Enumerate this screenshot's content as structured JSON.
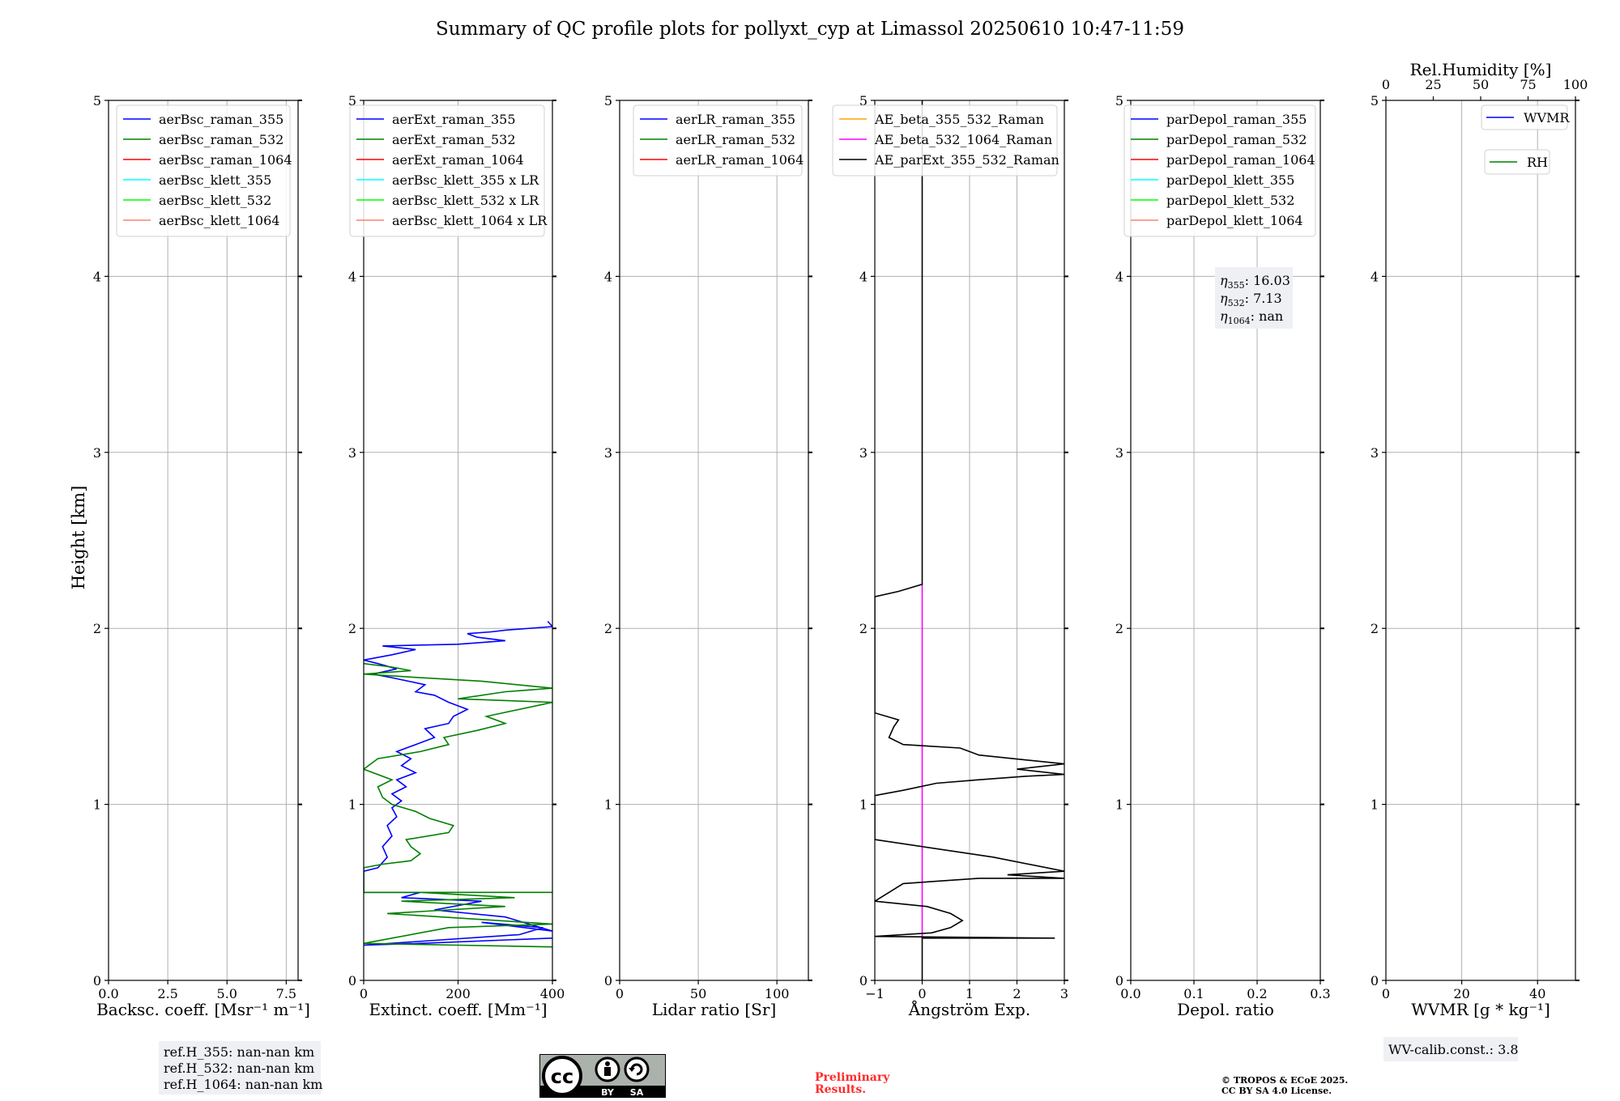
{
  "figure": {
    "title": "Summary of QC profile plots for pollyxt_cyp at Limassol 20250610 10:47-11:59",
    "ylabel": "Height [km]",
    "license_badge": {
      "icon": "cc-by-sa-icon",
      "by": "BY",
      "sa": "SA"
    },
    "preliminary": [
      "Preliminary",
      "Results."
    ],
    "copyright": [
      "© TROPOS & ECoE 2025.",
      "CC BY SA 4.0 License."
    ],
    "colors": {
      "blue": "#0000ff",
      "green": "#008000",
      "red": "#ff0000",
      "cyan": "#00ffff",
      "lime": "#00ff00",
      "salmon": "#fa8072",
      "orange": "#ffa500",
      "magenta": "#ff00ff",
      "black": "#000000"
    }
  },
  "chart_data": [
    {
      "type": "line",
      "id": "bsc",
      "xlabel": "Backsc. coeff. [Msr⁻¹ m⁻¹]",
      "ylabel": "Height [km]",
      "xlim": [
        0,
        8
      ],
      "ylim": [
        0,
        5
      ],
      "xticks": [
        0,
        2.5,
        5,
        7.5
      ],
      "xtick_labels": [
        "0.0",
        "2.5",
        "5.0",
        "7.5"
      ],
      "yticks": [
        0,
        1,
        2,
        3,
        4,
        5
      ],
      "grid": true,
      "legend_loc": "top-left",
      "series": [
        {
          "name": "aerBsc_raman_355",
          "color": "#0000ff",
          "points": []
        },
        {
          "name": "aerBsc_raman_532",
          "color": "#008000",
          "points": []
        },
        {
          "name": "aerBsc_raman_1064",
          "color": "#ff0000",
          "points": []
        },
        {
          "name": "aerBsc_klett_355",
          "color": "#00ffff",
          "points": []
        },
        {
          "name": "aerBsc_klett_532",
          "color": "#00ff00",
          "points": []
        },
        {
          "name": "aerBsc_klett_1064",
          "color": "#fa8072",
          "points": []
        }
      ],
      "annotation": [
        "ref.H_355: nan-nan km",
        "ref.H_532: nan-nan km",
        "ref.H_1064: nan-nan km"
      ]
    },
    {
      "type": "line",
      "id": "ext",
      "xlabel": "Extinct. coeff. [Mm⁻¹]",
      "xlim": [
        0,
        400
      ],
      "ylim": [
        0,
        5
      ],
      "xticks": [
        0,
        200,
        400
      ],
      "xtick_labels": [
        "0",
        "200",
        "400"
      ],
      "yticks": [
        0,
        1,
        2,
        3,
        4,
        5
      ],
      "grid": true,
      "legend_loc": "top-left",
      "series": [
        {
          "name": "aerExt_raman_355",
          "color": "#0000ff",
          "points": [
            [
              400,
              0.24
            ],
            [
              120,
              0.21
            ],
            [
              0,
              0.2
            ],
            [
              330,
              0.26
            ],
            [
              380,
              0.3
            ],
            [
              250,
              0.33
            ],
            [
              400,
              0.28
            ],
            [
              300,
              0.36
            ],
            [
              150,
              0.4
            ],
            [
              250,
              0.45
            ],
            [
              80,
              0.47
            ],
            [
              120,
              0.5
            ],
            [
              0,
              0.5
            ],
            [
              0,
              0.62
            ],
            [
              30,
              0.64
            ],
            [
              50,
              0.7
            ],
            [
              40,
              0.76
            ],
            [
              60,
              0.82
            ],
            [
              50,
              0.88
            ],
            [
              70,
              0.93
            ],
            [
              60,
              0.98
            ],
            [
              80,
              1.02
            ],
            [
              60,
              1.06
            ],
            [
              90,
              1.1
            ],
            [
              70,
              1.14
            ],
            [
              110,
              1.18
            ],
            [
              80,
              1.22
            ],
            [
              100,
              1.26
            ],
            [
              70,
              1.3
            ],
            [
              110,
              1.34
            ],
            [
              150,
              1.38
            ],
            [
              130,
              1.43
            ],
            [
              180,
              1.46
            ],
            [
              190,
              1.5
            ],
            [
              220,
              1.54
            ],
            [
              180,
              1.58
            ],
            [
              150,
              1.62
            ],
            [
              110,
              1.64
            ],
            [
              130,
              1.68
            ],
            [
              60,
              1.72
            ],
            [
              20,
              1.74
            ],
            [
              70,
              1.77
            ],
            [
              30,
              1.8
            ],
            [
              0,
              1.82
            ],
            [
              60,
              1.85
            ],
            [
              110,
              1.88
            ],
            [
              40,
              1.9
            ],
            [
              200,
              1.91
            ],
            [
              300,
              1.93
            ],
            [
              240,
              1.95
            ],
            [
              220,
              1.97
            ],
            [
              270,
              1.98
            ],
            [
              300,
              1.99
            ],
            [
              400,
              2.01
            ],
            [
              390,
              2.04
            ]
          ]
        },
        {
          "name": "aerExt_raman_532",
          "color": "#008000",
          "points": [
            [
              400,
              0.19
            ],
            [
              200,
              0.2
            ],
            [
              0,
              0.21
            ],
            [
              180,
              0.3
            ],
            [
              400,
              0.32
            ],
            [
              50,
              0.38
            ],
            [
              300,
              0.42
            ],
            [
              80,
              0.45
            ],
            [
              320,
              0.47
            ],
            [
              120,
              0.5
            ],
            [
              400,
              0.5
            ],
            [
              0,
              0.5
            ],
            [
              0,
              0.64
            ],
            [
              40,
              0.66
            ],
            [
              100,
              0.68
            ],
            [
              120,
              0.72
            ],
            [
              100,
              0.76
            ],
            [
              90,
              0.8
            ],
            [
              180,
              0.84
            ],
            [
              190,
              0.88
            ],
            [
              140,
              0.92
            ],
            [
              110,
              0.96
            ],
            [
              60,
              1.0
            ],
            [
              40,
              1.04
            ],
            [
              30,
              1.1
            ],
            [
              60,
              1.14
            ],
            [
              0,
              1.2
            ],
            [
              30,
              1.26
            ],
            [
              120,
              1.3
            ],
            [
              180,
              1.34
            ],
            [
              170,
              1.38
            ],
            [
              240,
              1.42
            ],
            [
              300,
              1.46
            ],
            [
              260,
              1.5
            ],
            [
              400,
              1.58
            ],
            [
              200,
              1.6
            ],
            [
              300,
              1.64
            ],
            [
              400,
              1.66
            ],
            [
              250,
              1.7
            ],
            [
              120,
              1.72
            ],
            [
              0,
              1.74
            ],
            [
              100,
              1.76
            ],
            [
              60,
              1.78
            ],
            [
              0,
              1.8
            ]
          ]
        },
        {
          "name": "aerExt_raman_1064",
          "color": "#ff0000",
          "points": []
        },
        {
          "name": "aerBsc_klett_355 x LR",
          "color": "#00ffff",
          "points": []
        },
        {
          "name": "aerBsc_klett_532 x LR",
          "color": "#00ff00",
          "points": []
        },
        {
          "name": "aerBsc_klett_1064 x LR",
          "color": "#fa8072",
          "points": []
        }
      ]
    },
    {
      "type": "line",
      "id": "lr",
      "xlabel": "Lidar ratio [Sr]",
      "xlim": [
        0,
        120
      ],
      "ylim": [
        0,
        5
      ],
      "xticks": [
        0,
        50,
        100
      ],
      "xtick_labels": [
        "0",
        "50",
        "100"
      ],
      "yticks": [
        0,
        1,
        2,
        3,
        4,
        5
      ],
      "grid": true,
      "legend_loc": "top-left",
      "series": [
        {
          "name": "aerLR_raman_355",
          "color": "#0000ff",
          "points": []
        },
        {
          "name": "aerLR_raman_532",
          "color": "#008000",
          "points": []
        },
        {
          "name": "aerLR_raman_1064",
          "color": "#ff0000",
          "points": []
        }
      ]
    },
    {
      "type": "line",
      "id": "ae",
      "xlabel": "Ångström Exp.",
      "xlim": [
        -1,
        3
      ],
      "ylim": [
        0,
        5
      ],
      "xticks": [
        -1,
        0,
        1,
        2,
        3
      ],
      "xtick_labels": [
        "−1",
        "0",
        "1",
        "2",
        "3"
      ],
      "yticks": [
        0,
        1,
        2,
        3,
        4,
        5
      ],
      "grid": true,
      "legend_loc": "top-left",
      "series": [
        {
          "name": "AE_beta_355_532_Raman",
          "color": "#ffa500",
          "points": []
        },
        {
          "name": "AE_beta_532_1064_Raman",
          "color": "#ff00ff",
          "points": [
            [
              0,
              0.24
            ],
            [
              0,
              2.25
            ]
          ]
        },
        {
          "name": "AE_parExt_355_532_Raman",
          "color": "#000000",
          "points": [
            [
              0,
              0.0
            ],
            [
              0,
              0.24
            ],
            [
              2.8,
              0.24
            ],
            [
              -1,
              0.25
            ],
            [
              0.2,
              0.27
            ],
            [
              0.6,
              0.3
            ],
            [
              0.85,
              0.34
            ],
            [
              0.6,
              0.38
            ],
            [
              0.1,
              0.42
            ],
            [
              -1,
              0.45
            ],
            [
              -0.4,
              0.55
            ],
            [
              1.2,
              0.58
            ],
            [
              3,
              0.58
            ],
            [
              1.8,
              0.6
            ],
            [
              3,
              0.62
            ],
            [
              1.5,
              0.7
            ],
            [
              -1,
              0.8
            ],
            [
              -1,
              1.05
            ],
            [
              -0.4,
              1.08
            ],
            [
              0.3,
              1.12
            ],
            [
              1.2,
              1.14
            ],
            [
              2.2,
              1.16
            ],
            [
              3,
              1.17
            ],
            [
              2.0,
              1.2
            ],
            [
              3,
              1.23
            ],
            [
              1.2,
              1.28
            ],
            [
              0.8,
              1.32
            ],
            [
              -0.4,
              1.34
            ],
            [
              -0.7,
              1.38
            ],
            [
              -0.6,
              1.44
            ],
            [
              -0.5,
              1.48
            ],
            [
              -1,
              1.52
            ],
            [
              -1,
              2.18
            ],
            [
              -0.5,
              2.21
            ],
            [
              0,
              2.25
            ],
            [
              0,
              5
            ]
          ]
        }
      ]
    },
    {
      "type": "line",
      "id": "depol",
      "xlabel": "Depol. ratio",
      "xlim": [
        0,
        0.3
      ],
      "ylim": [
        0,
        5
      ],
      "xticks": [
        0,
        0.1,
        0.2,
        0.3
      ],
      "xtick_labels": [
        "0.0",
        "0.1",
        "0.2",
        "0.3"
      ],
      "yticks": [
        0,
        1,
        2,
        3,
        4,
        5
      ],
      "grid": true,
      "legend_loc": "top-left",
      "series": [
        {
          "name": "parDepol_raman_355",
          "color": "#0000ff",
          "points": []
        },
        {
          "name": "parDepol_raman_532",
          "color": "#008000",
          "points": []
        },
        {
          "name": "parDepol_raman_1064",
          "color": "#ff0000",
          "points": []
        },
        {
          "name": "parDepol_klett_355",
          "color": "#00ffff",
          "points": []
        },
        {
          "name": "parDepol_klett_532",
          "color": "#00ff00",
          "points": []
        },
        {
          "name": "parDepol_klett_1064",
          "color": "#fa8072",
          "points": []
        }
      ],
      "eta": [
        {
          "sub": "355",
          "value": "16.03"
        },
        {
          "sub": "532",
          "value": "7.13"
        },
        {
          "sub": "1064",
          "value": "nan"
        }
      ]
    },
    {
      "type": "line",
      "id": "wv",
      "xlabel": "WVMR [g * kg⁻¹]",
      "xlim": [
        0,
        50
      ],
      "ylim": [
        0,
        5
      ],
      "xticks": [
        0,
        20,
        40
      ],
      "xtick_labels": [
        "0",
        "20",
        "40"
      ],
      "yticks": [
        0,
        1,
        2,
        3,
        4,
        5
      ],
      "top_axis": {
        "label": "Rel.Humidity [%]",
        "xlim": [
          0,
          100
        ],
        "xticks": [
          0,
          25,
          50,
          75,
          100
        ],
        "xtick_labels": [
          "0",
          "25",
          "50",
          "75",
          "100"
        ]
      },
      "grid": true,
      "legend_loc": "top-right",
      "series": [
        {
          "name": "WVMR",
          "color": "#0000ff",
          "points": []
        },
        {
          "name": "RH",
          "color": "#008000",
          "points": []
        }
      ],
      "annotation": [
        "WV-calib.const.: 3.8"
      ]
    }
  ]
}
